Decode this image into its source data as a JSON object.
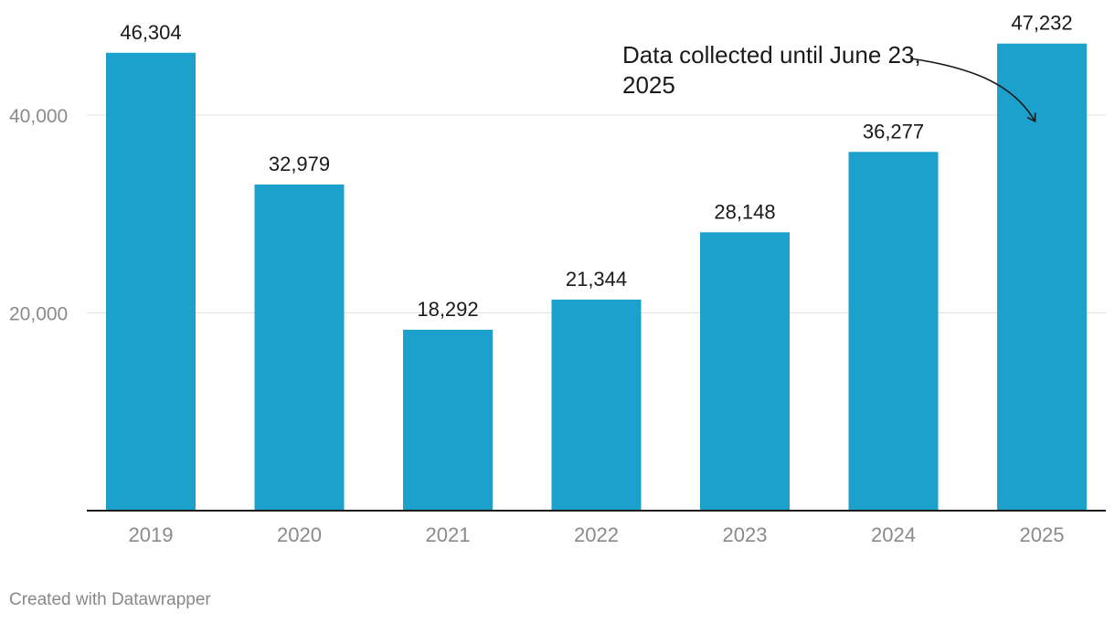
{
  "chart_data": {
    "type": "bar",
    "title": "",
    "xlabel": "",
    "ylabel": "",
    "categories": [
      "2019",
      "2020",
      "2021",
      "2022",
      "2023",
      "2024",
      "2025"
    ],
    "values": [
      46304,
      32979,
      18292,
      21344,
      28148,
      36277,
      47232
    ],
    "value_labels": [
      "46,304",
      "32,979",
      "18,292",
      "21,344",
      "28,148",
      "36,277",
      "47,232"
    ],
    "ylim": [
      0,
      48000
    ],
    "y_ticks": [
      20000,
      40000
    ],
    "y_tick_labels": [
      "20,000",
      "40,000"
    ],
    "grid": true,
    "bar_color": "#1ba1cc",
    "gridline_color": "#e1e1e1",
    "axis_color": "#1a1a1a",
    "tick_label_color": "#8a8a8a",
    "value_label_color": "#1a1a1a",
    "annotation": {
      "text": "Data collected until June 23, 2025",
      "target_category": "2025"
    }
  },
  "footer": {
    "credit": "Created with Datawrapper"
  }
}
